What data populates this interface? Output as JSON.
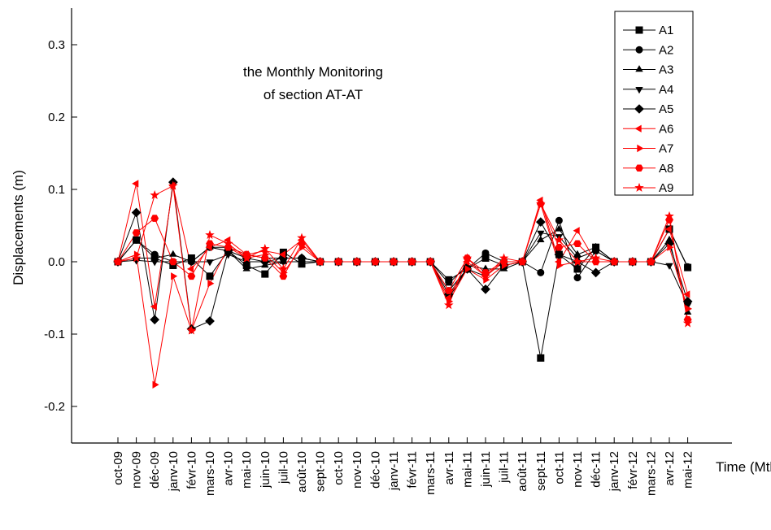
{
  "chart_data": {
    "type": "line",
    "annotation": [
      "the Monthly Monitoring",
      "of section  AT-AT"
    ],
    "x_label": "Time (Mth",
    "y_label": "Displacements (m)",
    "categories": [
      "oct-09",
      "nov-09",
      "déc-09",
      "janv-10",
      "févr-10",
      "mars-10",
      "avr-10",
      "mai-10",
      "juin-10",
      "juil-10",
      "août-10",
      "sept-10",
      "oct-10",
      "nov-10",
      "déc-10",
      "janv-11",
      "févr-11",
      "mars-11",
      "avr-11",
      "mai-11",
      "juin-11",
      "juil-11",
      "août-11",
      "sept-11",
      "oct-11",
      "nov-11",
      "déc-11",
      "janv-12",
      "févr-12",
      "mars-12",
      "avr-12",
      "mai-12"
    ],
    "ylim": [
      -0.25,
      0.35
    ],
    "yticks": [
      -0.2,
      -0.1,
      {
        "value": 0,
        "label": "0.0"
      },
      0.1,
      0.2,
      0.3
    ],
    "legend": "upper right",
    "series": [
      {
        "name": "A1",
        "color": "#000000",
        "marker": "square",
        "values": [
          0,
          0.03,
          0.005,
          -0.005,
          0.005,
          -0.02,
          0.015,
          -0.005,
          -0.017,
          0.013,
          -0.003,
          0,
          0,
          0,
          0,
          0,
          0,
          0,
          -0.025,
          -0.01,
          0.005,
          -0.005,
          0,
          -0.133,
          0.01,
          -0.01,
          0.02,
          0,
          0,
          0,
          0.045,
          -0.008
        ]
      },
      {
        "name": "A2",
        "color": "#000000",
        "marker": "circle",
        "values": [
          0,
          0.03,
          0.01,
          0,
          0,
          0.02,
          0.02,
          0.01,
          0.005,
          0.005,
          0.005,
          0,
          0,
          0,
          0,
          0,
          0,
          0,
          -0.04,
          -0.01,
          0.012,
          0,
          0,
          -0.015,
          0.057,
          -0.022,
          0.015,
          0,
          0,
          0,
          0.045,
          -0.007
        ]
      },
      {
        "name": "A3",
        "color": "#000000",
        "marker": "triangle-up",
        "values": [
          0,
          0.005,
          0.005,
          0.01,
          0,
          0.02,
          0.015,
          -0.01,
          -0.005,
          0,
          0,
          0,
          0,
          0,
          0,
          0,
          0,
          0,
          -0.03,
          -0.005,
          -0.01,
          -0.01,
          0,
          0.03,
          0.045,
          0.01,
          0.02,
          0,
          0,
          0,
          0.03,
          -0.07
        ]
      },
      {
        "name": "A4",
        "color": "#000000",
        "marker": "triangle-down",
        "values": [
          0,
          0.002,
          0,
          0,
          0,
          0,
          0.01,
          0,
          0,
          0,
          0,
          0,
          0,
          0,
          0,
          0,
          0,
          0,
          -0.05,
          -0.01,
          -0.02,
          0,
          0,
          0.04,
          0.035,
          0.005,
          0.015,
          0,
          0,
          0,
          -0.005,
          -0.06
        ]
      },
      {
        "name": "A5",
        "color": "#000000",
        "marker": "diamond",
        "values": [
          0,
          0.068,
          -0.08,
          0.11,
          -0.093,
          -0.082,
          0.015,
          0.005,
          0,
          0.005,
          0.005,
          0,
          0,
          0,
          0,
          0,
          0,
          0,
          -0.045,
          -0.01,
          -0.038,
          -0.005,
          0,
          0.055,
          0.01,
          0,
          -0.015,
          0,
          0,
          0,
          0.025,
          -0.055
        ]
      },
      {
        "name": "A6",
        "color": "#ff0000",
        "marker": "triangle-left",
        "values": [
          0,
          0.108,
          -0.062,
          0.105,
          -0.01,
          0.02,
          0.03,
          0.01,
          0.015,
          0.01,
          0.03,
          0,
          0,
          0,
          0,
          0,
          0,
          0,
          -0.05,
          0,
          -0.02,
          0,
          0,
          0.085,
          0,
          0.043,
          0,
          0,
          0,
          0,
          0.045,
          -0.045
        ]
      },
      {
        "name": "A7",
        "color": "#ff0000",
        "marker": "triangle-right",
        "values": [
          0,
          0.01,
          -0.17,
          -0.02,
          -0.095,
          -0.03,
          0.02,
          0.005,
          0.01,
          -0.015,
          0.02,
          0,
          0,
          0,
          0,
          0,
          0,
          0,
          -0.055,
          -0.01,
          -0.025,
          -0.005,
          0,
          0.08,
          -0.005,
          0,
          0,
          0,
          0,
          0,
          0.02,
          -0.065
        ]
      },
      {
        "name": "A8",
        "color": "#ff0000",
        "marker": "hexagon",
        "values": [
          0,
          0.04,
          0.06,
          0,
          -0.02,
          0.025,
          0.02,
          0.01,
          0.005,
          -0.02,
          0.025,
          0,
          0,
          0,
          0,
          0,
          0,
          0,
          -0.04,
          0.005,
          -0.015,
          0,
          0,
          0.08,
          0.02,
          0.025,
          0,
          0,
          0,
          0,
          0.058,
          -0.08
        ]
      },
      {
        "name": "A9",
        "color": "#ff0000",
        "marker": "star",
        "values": [
          0,
          0.005,
          0.092,
          0.105,
          -0.095,
          0.037,
          0.025,
          0.005,
          0.018,
          -0.01,
          0.033,
          0,
          0,
          0,
          0,
          0,
          0,
          0,
          -0.06,
          0.005,
          -0.02,
          0.005,
          0,
          0.08,
          0.03,
          0,
          0.005,
          0,
          0,
          0,
          0.063,
          -0.085
        ]
      }
    ]
  }
}
